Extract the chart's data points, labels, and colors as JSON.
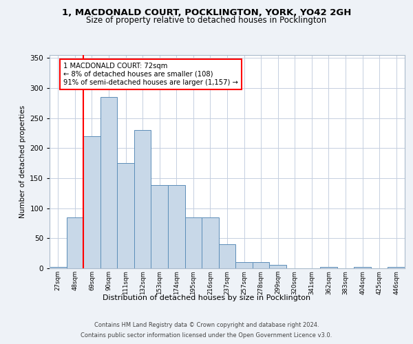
{
  "title1": "1, MACDONALD COURT, POCKLINGTON, YORK, YO42 2GH",
  "title2": "Size of property relative to detached houses in Pocklington",
  "xlabel": "Distribution of detached houses by size in Pocklington",
  "ylabel": "Number of detached properties",
  "categories": [
    "27sqm",
    "48sqm",
    "69sqm",
    "90sqm",
    "111sqm",
    "132sqm",
    "153sqm",
    "174sqm",
    "195sqm",
    "216sqm",
    "237sqm",
    "257sqm",
    "278sqm",
    "299sqm",
    "320sqm",
    "341sqm",
    "362sqm",
    "383sqm",
    "404sqm",
    "425sqm",
    "446sqm"
  ],
  "values": [
    2,
    85,
    220,
    285,
    175,
    230,
    138,
    138,
    85,
    85,
    40,
    10,
    10,
    6,
    0,
    0,
    2,
    0,
    2,
    0,
    2
  ],
  "bar_color": "#c8d8e8",
  "bar_edge_color": "#5b8db8",
  "vline_x": 1.5,
  "vline_color": "red",
  "annotation_text": "1 MACDONALD COURT: 72sqm\n← 8% of detached houses are smaller (108)\n91% of semi-detached houses are larger (1,157) →",
  "annotation_box_color": "white",
  "annotation_box_edge_color": "red",
  "ylim": [
    0,
    355
  ],
  "yticks": [
    0,
    50,
    100,
    150,
    200,
    250,
    300,
    350
  ],
  "bg_color": "#eef2f7",
  "plot_bg_color": "white",
  "grid_color": "#c5cfe0",
  "footer1": "Contains HM Land Registry data © Crown copyright and database right 2024.",
  "footer2": "Contains public sector information licensed under the Open Government Licence v3.0."
}
